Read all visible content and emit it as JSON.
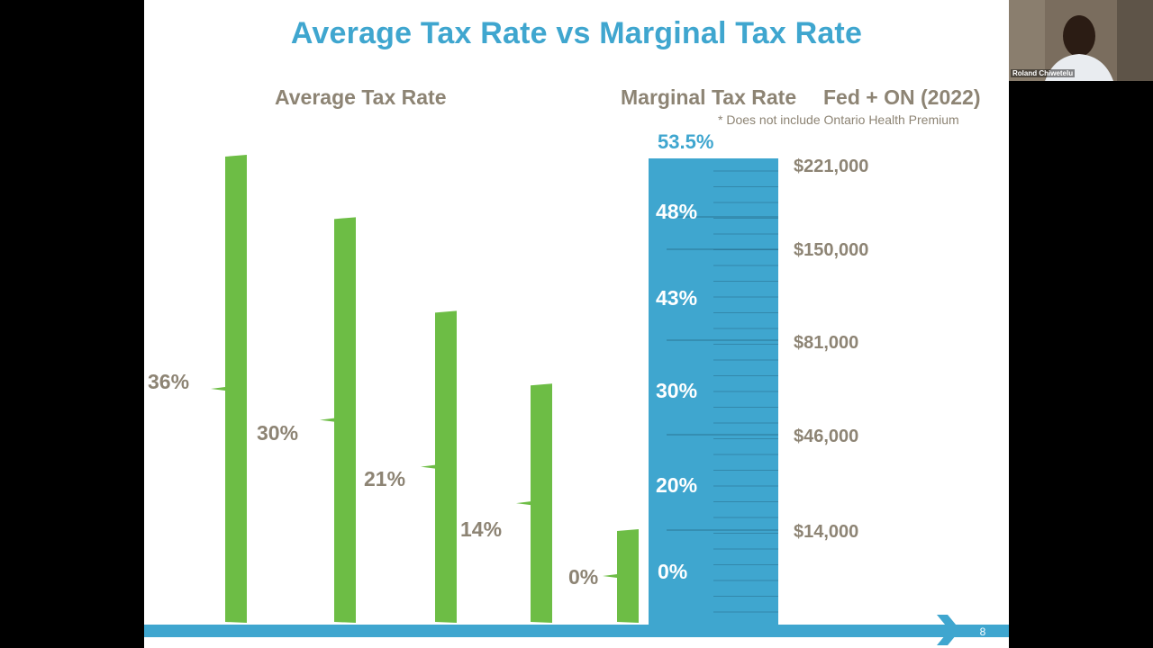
{
  "slide": {
    "title": "Average Tax Rate vs Marginal Tax Rate",
    "left_heading": "Average Tax Rate",
    "right_heading_1": "Marginal Tax Rate",
    "right_heading_2": "Fed + ON (2022)",
    "footnote": "* Does not include Ontario Health Premium",
    "page_number": "8",
    "colors": {
      "title": "#3fa6cf",
      "bars": "#6dbd45",
      "scale": "#3fa6cf",
      "text": "#8d8474"
    }
  },
  "chart_data": {
    "type": "bar",
    "title": "Average Tax Rate",
    "categories": [
      "$221,000",
      "$150,000",
      "$81,000",
      "$46,000",
      "$14,000"
    ],
    "values": [
      36,
      30,
      21,
      14,
      0
    ],
    "value_labels": [
      "36%",
      "30%",
      "21%",
      "14%",
      "0%"
    ],
    "marginal_scale": {
      "title": "Marginal Tax Rate",
      "top_label": "53.5%",
      "rate_labels": [
        "48%",
        "43%",
        "30%",
        "20%",
        "0%"
      ],
      "income_labels": [
        "$221,000",
        "$150,000",
        "$81,000",
        "$46,000",
        "$14,000"
      ]
    }
  },
  "video": {
    "participant_name": "Roland Chiwetelu"
  }
}
